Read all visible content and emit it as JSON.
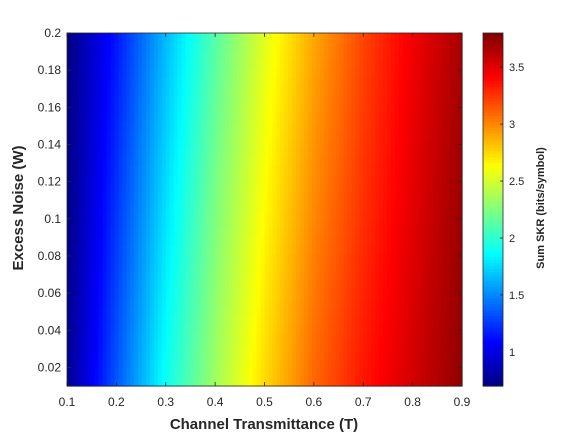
{
  "chart_data": {
    "type": "heatmap",
    "title": "",
    "xlabel": "Channel Transmittance (T)",
    "ylabel": "Excess Noise (W)",
    "colorbar_label": "Sum SKR (bits/symbol)",
    "xlim": [
      0.1,
      0.9
    ],
    "ylim": [
      0.01,
      0.2
    ],
    "x_ticks": [
      "0.1",
      "0.2",
      "0.3",
      "0.4",
      "0.5",
      "0.6",
      "0.7",
      "0.8",
      "0.9"
    ],
    "y_ticks": [
      "0.02",
      "0.04",
      "0.06",
      "0.08",
      "0.1",
      "0.12",
      "0.14",
      "0.16",
      "0.18",
      "0.2"
    ],
    "colorbar_ticks": [
      "1",
      "1.5",
      "2",
      "2.5",
      "3",
      "3.5"
    ],
    "colorbar_range": [
      0.7,
      3.8
    ],
    "colormap": "jet",
    "grid": false,
    "samples": {
      "x": [
        0.1,
        0.2,
        0.3,
        0.4,
        0.5,
        0.6,
        0.7,
        0.8,
        0.9
      ],
      "y": [
        0.01,
        0.1,
        0.2
      ],
      "z": [
        [
          0.75,
          1.35,
          1.9,
          2.35,
          2.75,
          3.1,
          3.35,
          3.55,
          3.75
        ],
        [
          0.72,
          1.25,
          1.78,
          2.25,
          2.65,
          3.0,
          3.27,
          3.5,
          3.72
        ],
        [
          0.7,
          1.15,
          1.65,
          2.12,
          2.55,
          2.9,
          3.2,
          3.45,
          3.68
        ]
      ]
    }
  }
}
